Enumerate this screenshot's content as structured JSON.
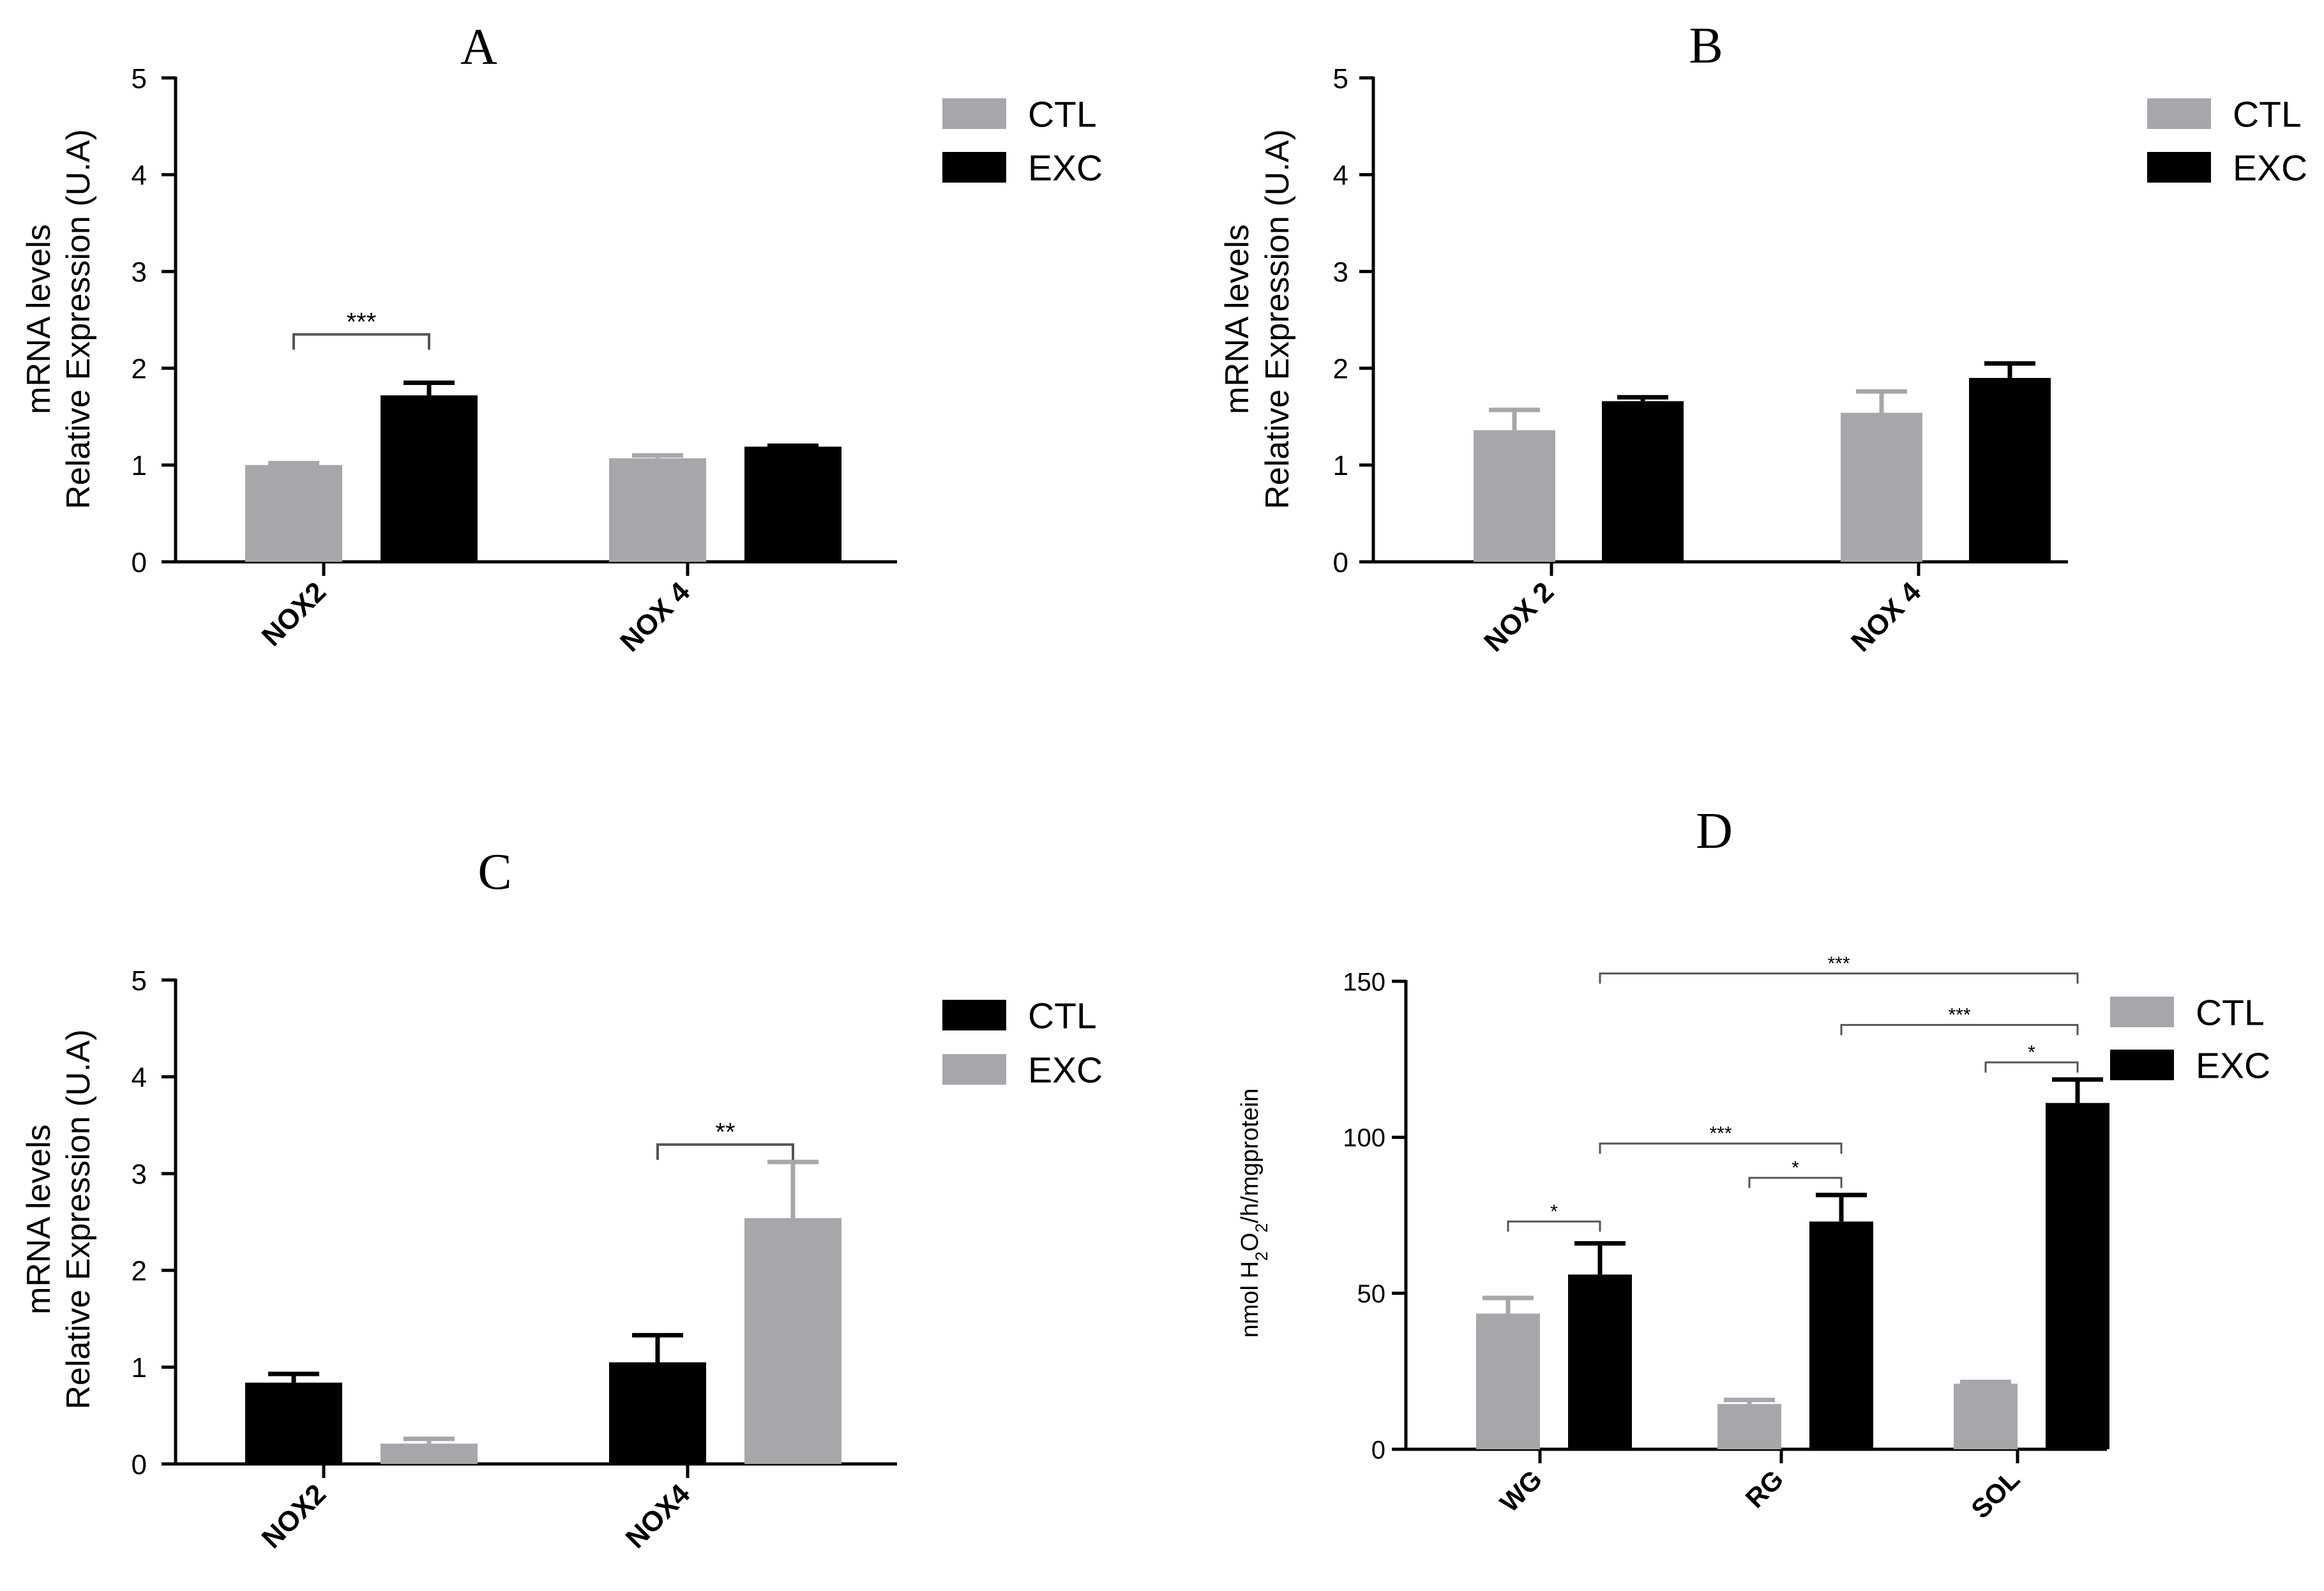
{
  "colors": {
    "ctl_gray": "#a7a7ab",
    "exc_black": "#000000",
    "axis": "#000000",
    "bracket": "#555555"
  },
  "chart_data": [
    {
      "id": "A",
      "type": "bar",
      "title": "A",
      "ylabel": [
        "mRNA levels",
        "Relative Expression (U.A)"
      ],
      "xlabel": "",
      "categories": [
        "NOX2",
        "NOX 4"
      ],
      "ylim": [
        0,
        5
      ],
      "yticks": [
        0,
        1,
        2,
        3,
        4,
        5
      ],
      "series": [
        {
          "name": "CTL",
          "color": "#a7a7ab",
          "values": [
            1.0,
            1.07
          ],
          "errors": [
            0.02,
            0.03
          ]
        },
        {
          "name": "EXC",
          "color": "#000000",
          "values": [
            1.72,
            1.19
          ],
          "errors": [
            0.13,
            0.01
          ]
        }
      ],
      "legend": [
        {
          "label": "CTL",
          "color": "#a7a7ab"
        },
        {
          "label": "EXC",
          "color": "#000000"
        }
      ],
      "annotations": [
        {
          "text": "***",
          "from": [
            0,
            0
          ],
          "to": [
            0,
            1
          ],
          "y": 2.35
        }
      ]
    },
    {
      "id": "B",
      "type": "bar",
      "title": "B",
      "ylabel": [
        "mRNA levels",
        "Relative Expression (U.A)"
      ],
      "xlabel": "",
      "categories": [
        "NOX 2",
        "NOX 4"
      ],
      "ylim": [
        0,
        5
      ],
      "yticks": [
        0,
        1,
        2,
        3,
        4,
        5
      ],
      "series": [
        {
          "name": "CTL",
          "color": "#a7a7ab",
          "values": [
            1.36,
            1.54
          ],
          "errors": [
            0.21,
            0.22
          ]
        },
        {
          "name": "EXC",
          "color": "#000000",
          "values": [
            1.66,
            1.9
          ],
          "errors": [
            0.04,
            0.15
          ]
        }
      ],
      "legend": [
        {
          "label": "CTL",
          "color": "#a7a7ab"
        },
        {
          "label": "EXC",
          "color": "#000000"
        }
      ],
      "annotations": []
    },
    {
      "id": "C",
      "type": "bar",
      "title": "C",
      "ylabel": [
        "mRNA levels",
        "Relative Expression (U.A)"
      ],
      "xlabel": "",
      "categories": [
        "NOX2",
        "NOX4"
      ],
      "ylim": [
        0,
        5
      ],
      "yticks": [
        0,
        1,
        2,
        3,
        4,
        5
      ],
      "series": [
        {
          "name": "CTL",
          "color": "#000000",
          "values": [
            0.84,
            1.05
          ],
          "errors": [
            0.09,
            0.28
          ]
        },
        {
          "name": "EXC",
          "color": "#a7a7ab",
          "values": [
            0.21,
            2.54
          ],
          "errors": [
            0.05,
            0.58
          ]
        }
      ],
      "legend": [
        {
          "label": "CTL",
          "color": "#000000"
        },
        {
          "label": "EXC",
          "color": "#a7a7ab"
        }
      ],
      "annotations": [
        {
          "text": "**",
          "from": [
            1,
            0
          ],
          "to": [
            1,
            1
          ],
          "y": 3.3
        }
      ]
    },
    {
      "id": "D",
      "type": "bar",
      "title": "D",
      "ylabel": "nmol H2O2/h/mgprotein",
      "xlabel": "",
      "categories": [
        "WG",
        "RG",
        "SOL"
      ],
      "ylim": [
        0,
        150
      ],
      "yticks": [
        0,
        50,
        100,
        150
      ],
      "series": [
        {
          "name": "CTL",
          "color": "#a7a7ab",
          "values": [
            43.5,
            14.5,
            21
          ],
          "errors": [
            5,
            1.3,
            0.6
          ]
        },
        {
          "name": "EXC",
          "color": "#000000",
          "values": [
            56,
            73,
            111
          ],
          "errors": [
            10,
            8.5,
            7.5
          ]
        }
      ],
      "legend": [
        {
          "label": "CTL",
          "color": "#a7a7ab"
        },
        {
          "label": "EXC",
          "color": "#000000"
        }
      ],
      "annotations": [
        {
          "text": "*",
          "from": [
            0,
            0
          ],
          "to": [
            0,
            1
          ],
          "y": 73
        },
        {
          "text": "***",
          "from": [
            0,
            1
          ],
          "to": [
            1,
            1
          ],
          "y": 98
        },
        {
          "text": "*",
          "from": [
            1,
            0
          ],
          "to": [
            1,
            1
          ],
          "y": 87
        },
        {
          "text": "***",
          "from": [
            1,
            1
          ],
          "to": [
            2,
            1
          ],
          "y": 136
        },
        {
          "text": "*",
          "from": [
            2,
            0
          ],
          "to": [
            2,
            1
          ],
          "y": 124
        },
        {
          "text": "***",
          "from": [
            0,
            1
          ],
          "to": [
            2,
            1
          ],
          "y": 152.5
        }
      ]
    }
  ]
}
